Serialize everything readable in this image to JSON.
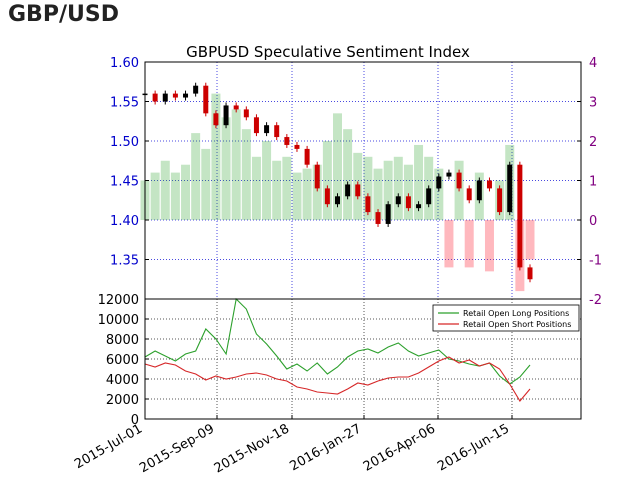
{
  "header": {
    "title": "GBP/USD"
  },
  "chart_data": [
    {
      "type": "line",
      "title": "GBPUSD Speculative Sentiment Index",
      "xlabel": "",
      "ylabel": "",
      "x_ticks": [
        "2015-Jul-01",
        "2015-Sep-09",
        "2015-Nov-18",
        "2016-Jan-27",
        "2016-Apr-06",
        "2016-Jun-15"
      ],
      "ylim": [
        1.3,
        1.6
      ],
      "y_ticks": [
        "1.60",
        "1.55",
        "1.50",
        "1.45",
        "1.40",
        "1.35"
      ],
      "y2lim": [
        -2,
        4
      ],
      "y2_ticks": [
        "4",
        "3",
        "2",
        "1",
        "0",
        "-1",
        "-2"
      ],
      "grid": true,
      "colors": {
        "price_up": "#000000",
        "price_down": "#cc0000",
        "ratio_positive": "#2ca02c",
        "ratio_negative": "#ff3344",
        "left_axis": "#0000cc",
        "right_axis": "#800080"
      },
      "series": [
        {
          "name": "Price",
          "x": [
            0,
            10,
            20,
            30,
            40,
            50,
            60,
            70,
            80,
            90,
            100,
            110,
            120,
            130,
            140,
            150,
            160,
            170,
            180,
            190,
            200,
            210,
            220,
            230,
            240,
            250,
            260,
            270,
            280,
            290,
            300,
            310,
            320,
            330,
            340,
            350,
            360,
            370,
            380
          ],
          "values": [
            1.56,
            1.55,
            1.56,
            1.555,
            1.56,
            1.57,
            1.535,
            1.52,
            1.545,
            1.54,
            1.53,
            1.51,
            1.52,
            1.505,
            1.495,
            1.49,
            1.47,
            1.44,
            1.42,
            1.43,
            1.445,
            1.43,
            1.41,
            1.395,
            1.42,
            1.43,
            1.415,
            1.42,
            1.44,
            1.455,
            1.46,
            1.44,
            1.425,
            1.45,
            1.44,
            1.41,
            1.47,
            1.34,
            1.325
          ]
        },
        {
          "name": "SSI Ratio",
          "x": [
            0,
            10,
            20,
            30,
            40,
            50,
            60,
            70,
            80,
            90,
            100,
            110,
            120,
            130,
            140,
            150,
            160,
            170,
            180,
            190,
            200,
            210,
            220,
            230,
            240,
            250,
            260,
            270,
            280,
            290,
            300,
            310,
            320,
            330,
            340,
            350,
            360,
            370,
            380
          ],
          "values": [
            1.0,
            1.2,
            1.5,
            1.2,
            1.4,
            2.2,
            1.8,
            3.2,
            2.6,
            2.8,
            2.3,
            1.6,
            2.0,
            1.5,
            1.6,
            1.2,
            1.3,
            1.4,
            2.0,
            2.7,
            2.3,
            1.7,
            1.6,
            1.3,
            1.5,
            1.6,
            1.4,
            1.9,
            1.6,
            1.3,
            -1.2,
            1.5,
            -1.2,
            1.2,
            -1.3,
            1.0,
            1.9,
            -1.8,
            -1.0
          ]
        }
      ],
      "yaxis_side": "left"
    },
    {
      "type": "line",
      "title": "",
      "xlabel": "",
      "ylabel": "",
      "x_ticks": [
        "2015-Jul-01",
        "2015-Sep-09",
        "2015-Nov-18",
        "2016-Jan-27",
        "2016-Apr-06",
        "2016-Jun-15"
      ],
      "ylim": [
        0,
        12000
      ],
      "y_ticks": [
        "12000",
        "10000",
        "8000",
        "6000",
        "4000",
        "2000",
        "0"
      ],
      "grid": true,
      "legend_position": "top-right",
      "series": [
        {
          "name": "Retail Open Long Positions",
          "color": "#2ca02c",
          "x": [
            0,
            10,
            20,
            30,
            40,
            50,
            60,
            70,
            80,
            90,
            100,
            110,
            120,
            130,
            140,
            150,
            160,
            170,
            180,
            190,
            200,
            210,
            220,
            230,
            240,
            250,
            260,
            270,
            280,
            290,
            300,
            310,
            320,
            330,
            340,
            350,
            360,
            370,
            380
          ],
          "values": [
            6200,
            6800,
            6300,
            5800,
            6500,
            6800,
            9000,
            8000,
            6500,
            12000,
            11000,
            8500,
            7500,
            6300,
            5000,
            5500,
            4800,
            5600,
            4500,
            5200,
            6200,
            6800,
            7000,
            6600,
            7200,
            7600,
            6800,
            6300,
            6600,
            6900,
            6000,
            5800,
            5500,
            5300,
            5600,
            4300,
            3500,
            4200,
            5400
          ]
        },
        {
          "name": "Retail Open Short Positions",
          "color": "#d62728",
          "x": [
            0,
            10,
            20,
            30,
            40,
            50,
            60,
            70,
            80,
            90,
            100,
            110,
            120,
            130,
            140,
            150,
            160,
            170,
            180,
            190,
            200,
            210,
            220,
            230,
            240,
            250,
            260,
            270,
            280,
            290,
            300,
            310,
            320,
            330,
            340,
            350,
            360,
            370,
            380
          ],
          "values": [
            5500,
            5200,
            5600,
            5400,
            4800,
            4500,
            3900,
            4300,
            4000,
            4200,
            4500,
            4600,
            4400,
            4000,
            3800,
            3200,
            3000,
            2700,
            2600,
            2500,
            3000,
            3600,
            3400,
            3800,
            4100,
            4200,
            4200,
            4600,
            5200,
            5800,
            6200,
            5600,
            5900,
            5300,
            5600,
            5000,
            3500,
            1800,
            3000
          ]
        }
      ]
    }
  ]
}
